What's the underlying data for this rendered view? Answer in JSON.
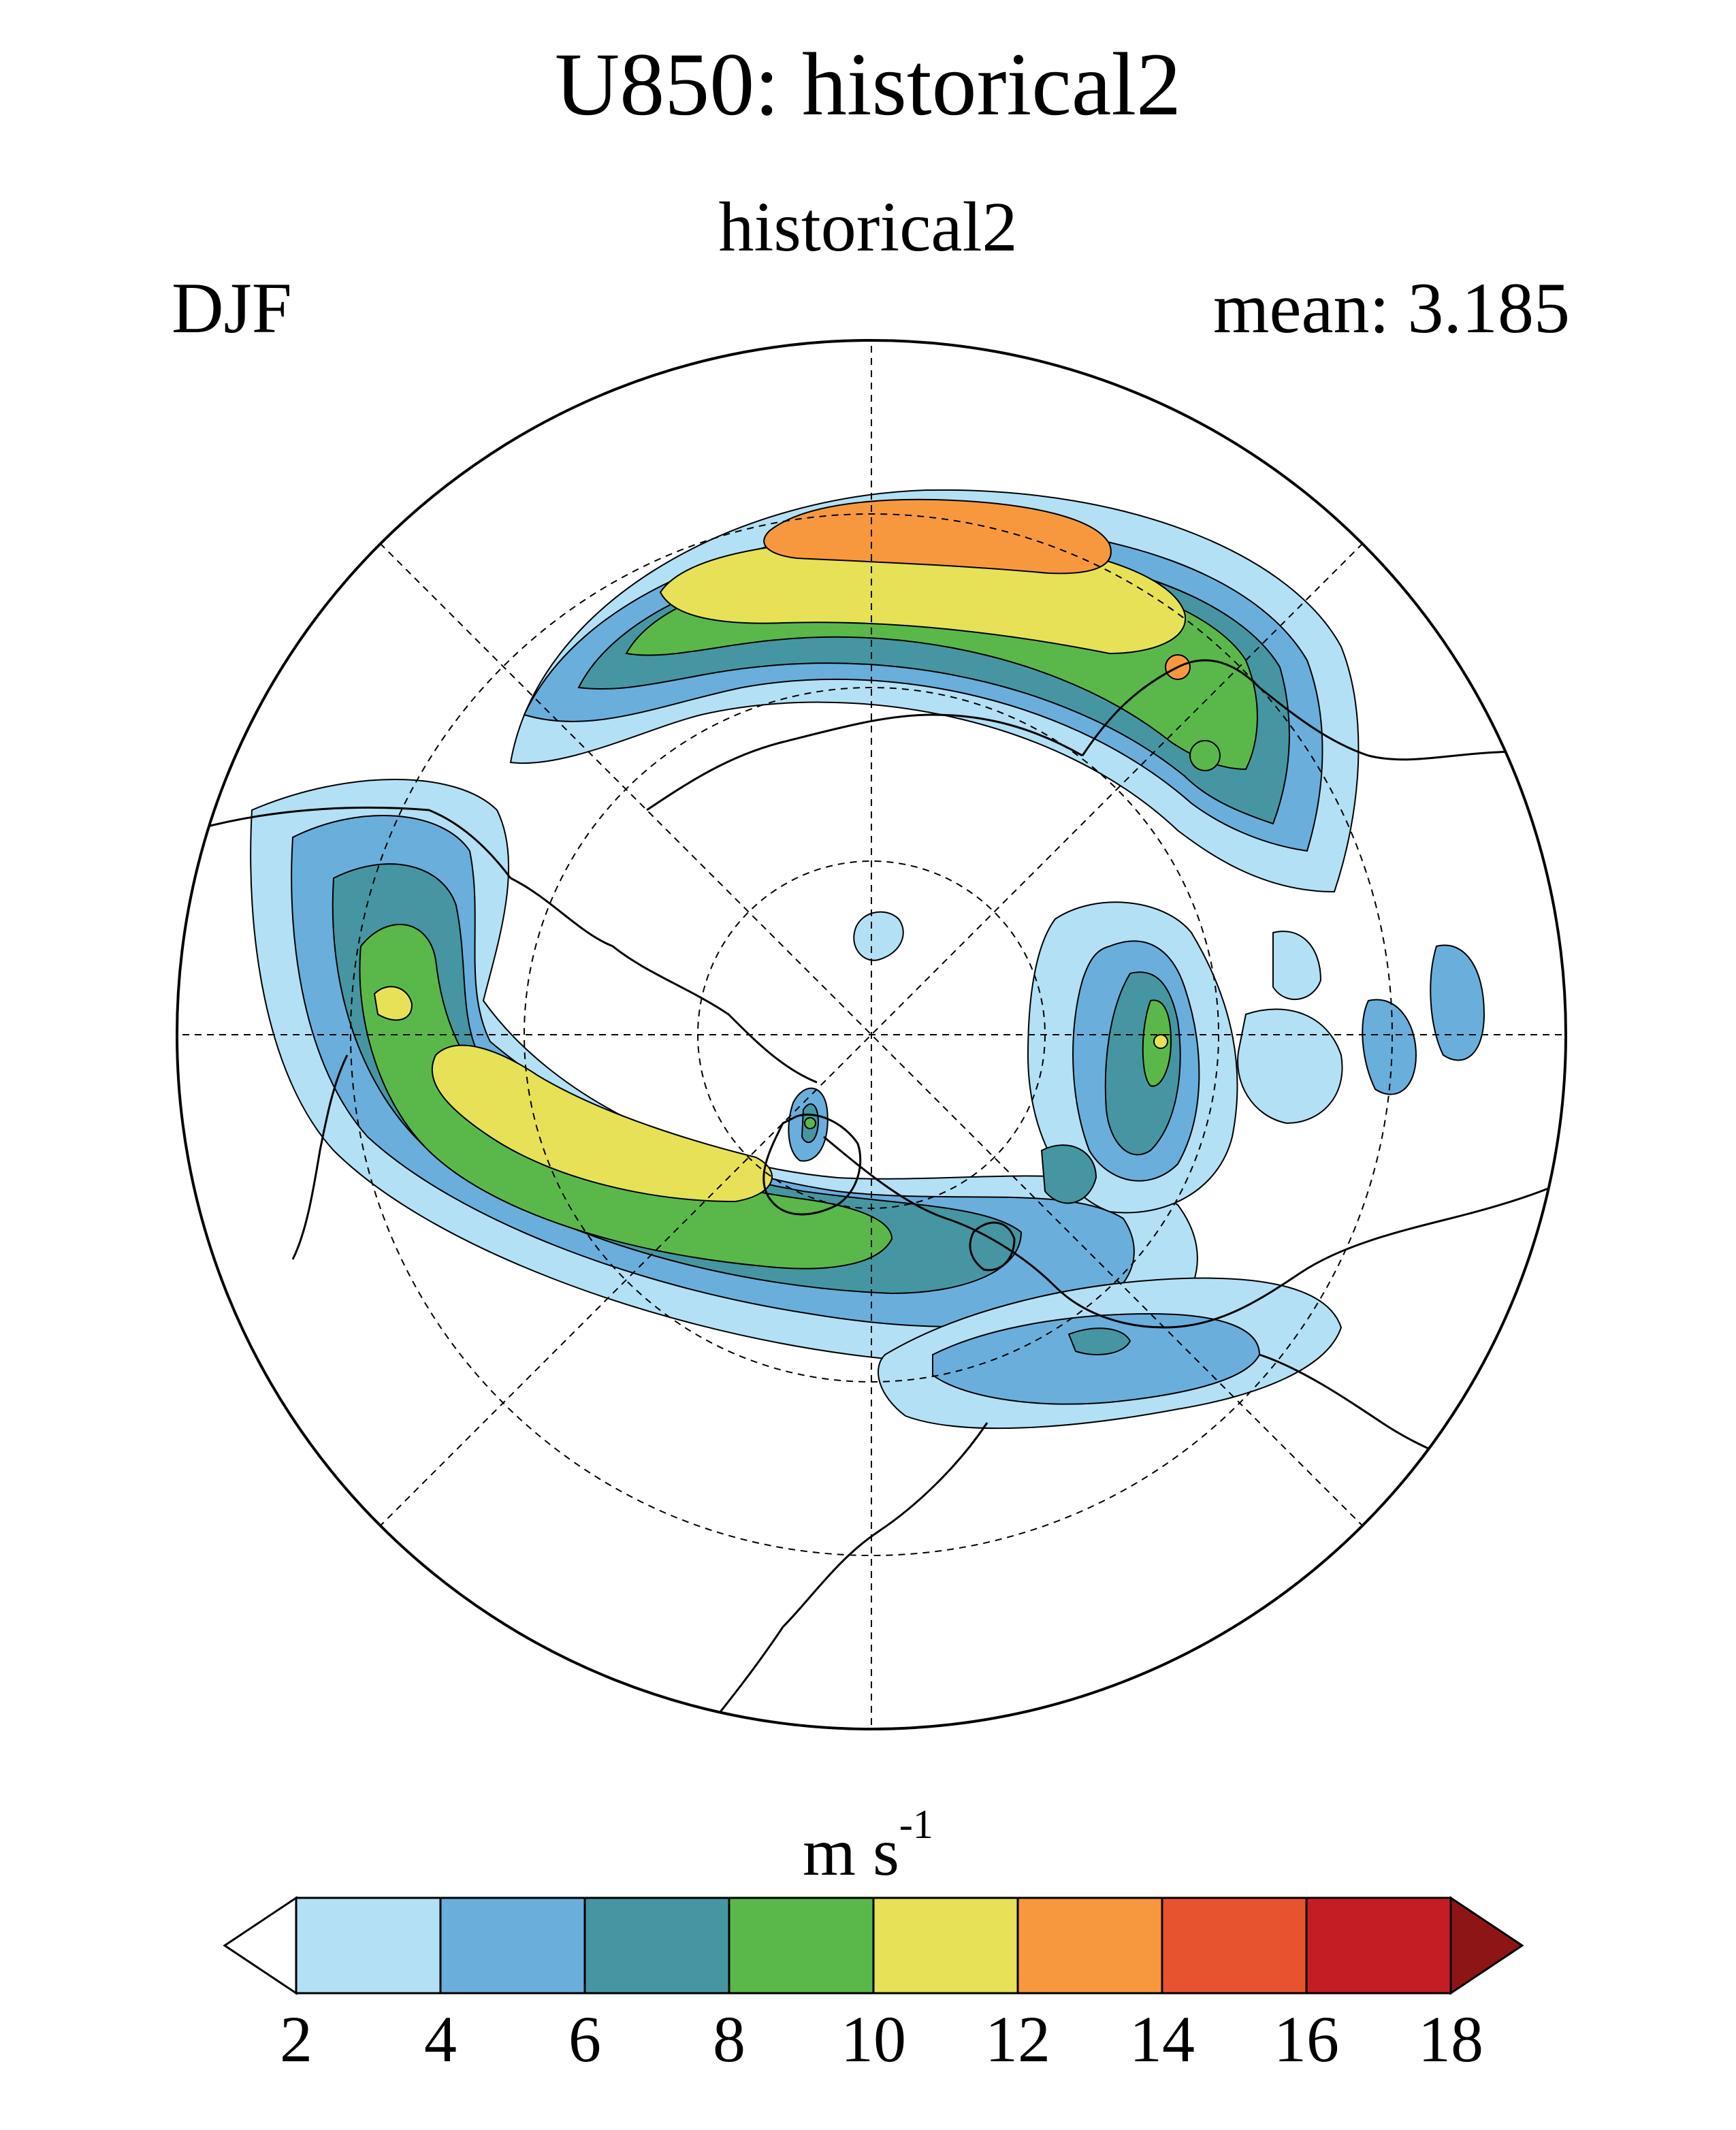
{
  "title": "U850: historical2",
  "subtitle": "historical2",
  "season": "DJF",
  "mean_label": "mean: 3.185",
  "colorbar": {
    "units_base": "m s",
    "units_exp": "-1",
    "tick_labels": [
      "2",
      "4",
      "6",
      "8",
      "10",
      "12",
      "14",
      "16",
      "18"
    ],
    "levels": [
      2,
      4,
      6,
      8,
      10,
      12,
      14,
      16,
      18
    ],
    "colors": [
      "#ffffff",
      "#b3e0f5",
      "#6aaedc",
      "#4596a2",
      "#5ab84a",
      "#e6e156",
      "#f7983f",
      "#e8532f",
      "#c41e24",
      "#8e1515"
    ]
  },
  "map": {
    "projection": "north-polar-stereographic",
    "variable": "850 hPa zonal wind",
    "coastlines": true,
    "graticule": "dashed"
  }
}
